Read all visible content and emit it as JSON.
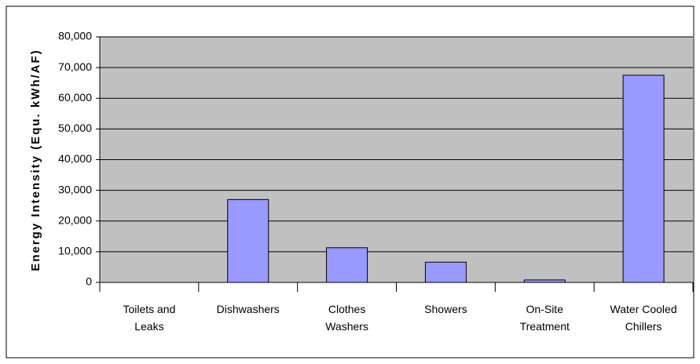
{
  "chart_data": {
    "type": "bar",
    "y_axis_label": "Energy Intensity (Equ. kWh/AF)",
    "categories": [
      "Toilets and Leaks",
      "Dishwashers",
      "Clothes Washers",
      "Showers",
      "On-Site Treatment",
      "Water Cooled Chillers"
    ],
    "values": [
      0,
      27000,
      11300,
      6600,
      800,
      67500
    ],
    "color": "#9999ff",
    "ylim": [
      0,
      80000
    ],
    "yticks": [
      0,
      {
        "value": 10000,
        "label": "10,000"
      },
      {
        "value": 20000,
        "label": "20,000"
      },
      {
        "value": 30000,
        "label": "30,000"
      },
      {
        "value": 40000,
        "label": "40,000"
      },
      {
        "value": 50000,
        "label": "50,000"
      },
      {
        "value": 60000,
        "label": "60,000"
      },
      {
        "value": 70000,
        "label": "70,000"
      },
      {
        "value": 80000,
        "label": "80,000"
      }
    ],
    "grid": true
  }
}
